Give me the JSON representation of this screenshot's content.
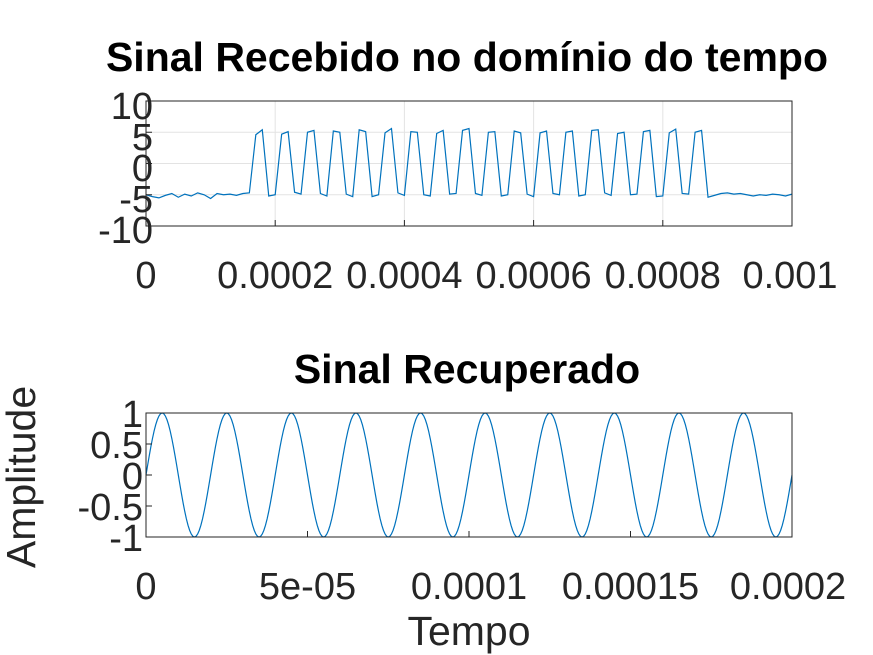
{
  "chart_data": [
    {
      "type": "line",
      "title": "Sinal Recebido no domínio do tempo",
      "xlabel": "",
      "ylabel": "",
      "xlim": [
        0,
        0.001
      ],
      "ylim": [
        -10,
        10
      ],
      "grid": true,
      "xticks": [
        0,
        0.0002,
        0.0004,
        0.0006,
        0.0008,
        0.001
      ],
      "xticklabels": [
        "0",
        "0.0002",
        "0.0004",
        "0.0006",
        "0.0008",
        "0.001"
      ],
      "yticks": [
        10,
        5,
        0,
        -5,
        -10
      ],
      "yticklabels": [
        "10",
        "5",
        "0",
        "-5",
        "-10"
      ],
      "series": [
        {
          "color": "#0072bd",
          "x": [
            0,
            1e-05,
            2e-05,
            3e-05,
            4e-05,
            5e-05,
            6e-05,
            7e-05,
            8e-05,
            9e-05,
            0.0001,
            0.00011,
            0.00012,
            0.00013,
            0.00014,
            0.00015,
            0.00016,
            0.00017,
            0.00018,
            0.00019,
            0.0002,
            0.00021,
            0.00022,
            0.00023,
            0.00024,
            0.00025,
            0.00026,
            0.00027,
            0.00028,
            0.00029,
            0.0003,
            0.00031,
            0.00032,
            0.00033,
            0.00034,
            0.00035,
            0.00036,
            0.00037,
            0.00038,
            0.00039,
            0.0004,
            0.00041,
            0.00042,
            0.00043,
            0.00044,
            0.00045,
            0.00046,
            0.00047,
            0.00048,
            0.00049,
            0.0005,
            0.00051,
            0.00052,
            0.00053,
            0.00054,
            0.00055,
            0.00056,
            0.00057,
            0.00058,
            0.00059,
            0.0006,
            0.00061,
            0.00062,
            0.00063,
            0.00064,
            0.00065,
            0.00066,
            0.00067,
            0.00068,
            0.00069,
            0.0007,
            0.00071,
            0.00072,
            0.00073,
            0.00074,
            0.00075,
            0.00076,
            0.00077,
            0.00078,
            0.00079,
            0.0008,
            0.00081,
            0.00082,
            0.00083,
            0.00084,
            0.00085,
            0.00086,
            0.00087,
            0.00088,
            0.00089,
            0.0009,
            0.00091,
            0.00092,
            0.00093,
            0.00094,
            0.00095,
            0.00096,
            0.00097,
            0.00098,
            0.00099,
            0.001
          ],
          "y": [
            -5.0,
            -5.3,
            -5.5,
            -5.1,
            -4.8,
            -5.4,
            -4.9,
            -5.2,
            -4.7,
            -5.0,
            -5.6,
            -4.8,
            -5.0,
            -4.9,
            -5.1,
            -4.8,
            -4.7,
            4.6,
            5.4,
            -5.2,
            -5.0,
            4.7,
            5.1,
            -4.6,
            -4.9,
            5.0,
            5.3,
            -4.8,
            -5.2,
            5.2,
            5.0,
            -4.9,
            -5.3,
            5.4,
            5.1,
            -5.3,
            -5.0,
            4.9,
            5.6,
            -4.7,
            -5.1,
            5.1,
            5.0,
            -5.0,
            -5.2,
            4.8,
            5.3,
            -4.9,
            -4.8,
            5.3,
            5.6,
            -4.8,
            -5.1,
            5.0,
            5.1,
            -5.2,
            -5.0,
            5.2,
            4.9,
            -4.9,
            -5.3,
            4.9,
            5.2,
            -4.8,
            -5.0,
            5.0,
            5.2,
            -5.2,
            -5.0,
            5.3,
            5.4,
            -4.7,
            -5.1,
            4.8,
            5.0,
            -5.0,
            -4.9,
            5.1,
            5.3,
            -5.3,
            -5.2,
            4.9,
            5.5,
            -4.8,
            -4.9,
            5.0,
            5.3,
            -5.4,
            -5.1,
            -4.8,
            -4.7,
            -4.9,
            -4.8,
            -5.0,
            -5.2,
            -5.0,
            -5.1,
            -4.9,
            -5.0,
            -5.2,
            -4.9
          ]
        }
      ]
    },
    {
      "type": "line",
      "title": "Sinal Recuperado",
      "xlabel": "Tempo",
      "ylabel": "Amplitude",
      "xlim": [
        0,
        0.0002
      ],
      "ylim": [
        -1,
        1
      ],
      "grid": false,
      "xticks": [
        0,
        5e-05,
        0.0001,
        0.00015,
        0.0002
      ],
      "xticklabels": [
        "0",
        "5e-05",
        "0.0001",
        "0.00015",
        "0.0002"
      ],
      "yticks": [
        1,
        0.5,
        0,
        -0.5,
        -1
      ],
      "yticklabels": [
        "1",
        "0.5",
        "0",
        "-0.5",
        "-1"
      ],
      "series": [
        {
          "color": "#0072bd",
          "function": "sin",
          "amplitude": 1,
          "frequency_hz": 50000,
          "x_start": 0,
          "x_end": 0.0002,
          "sample_count": 401
        }
      ]
    }
  ]
}
